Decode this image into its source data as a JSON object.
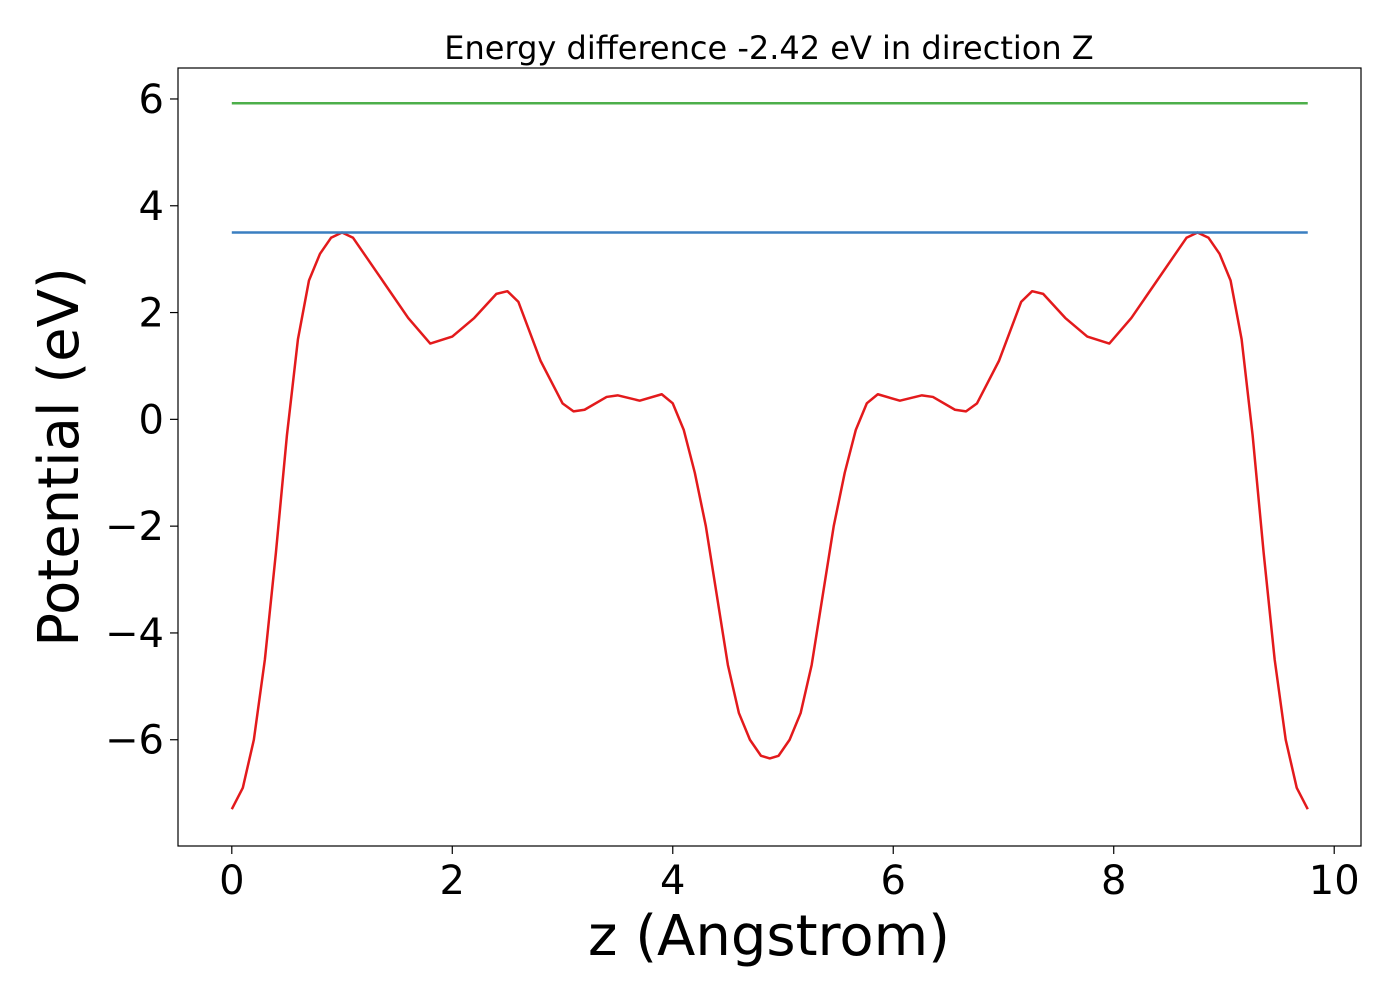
{
  "chart_data": {
    "type": "line",
    "title": "Energy difference -2.42 eV in direction Z",
    "xlabel": "z (Angstrom)",
    "ylabel": "Potential (eV)",
    "xlim": [
      -0.488,
      10.243
    ],
    "ylim": [
      -7.99,
      6.58
    ],
    "xticks": [
      0,
      2,
      4,
      6,
      8,
      10
    ],
    "yticks": [
      {
        "value": -6,
        "label": "−6"
      },
      {
        "value": -4,
        "label": "−4"
      },
      {
        "value": -2,
        "label": "−2"
      },
      0,
      2,
      4,
      6
    ],
    "series": [
      {
        "color": "#e31a1c",
        "x": [
          0,
          0.1,
          0.2,
          0.3,
          0.4,
          0.5,
          0.6,
          0.7,
          0.8,
          0.9,
          1.0,
          1.1,
          1.2,
          1.4,
          1.6,
          1.8,
          2.0,
          2.2,
          2.4,
          2.5,
          2.6,
          2.8,
          3.0,
          3.1,
          3.2,
          3.4,
          3.5,
          3.7,
          3.9,
          4.0,
          4.1,
          4.2,
          4.3,
          4.4,
          4.5,
          4.6,
          4.7,
          4.8,
          4.88,
          4.96,
          5.06,
          5.16,
          5.26,
          5.36,
          5.46,
          5.56,
          5.66,
          5.76,
          5.86,
          6.06,
          6.26,
          6.36,
          6.56,
          6.66,
          6.76,
          6.96,
          7.16,
          7.26,
          7.36,
          7.56,
          7.76,
          7.96,
          8.16,
          8.36,
          8.56,
          8.66,
          8.76,
          8.86,
          8.96,
          9.06,
          9.16,
          9.26,
          9.36,
          9.46,
          9.56,
          9.66,
          9.76
        ],
        "values": [
          -7.3,
          -6.9,
          -6.0,
          -4.5,
          -2.5,
          -0.3,
          1.5,
          2.6,
          3.1,
          3.4,
          3.5,
          3.4,
          3.1,
          2.5,
          1.9,
          1.42,
          1.55,
          1.9,
          2.35,
          2.4,
          2.2,
          1.1,
          0.3,
          0.15,
          0.18,
          0.42,
          0.45,
          0.35,
          0.47,
          0.3,
          -0.2,
          -1.0,
          -2.0,
          -3.3,
          -4.6,
          -5.5,
          -6.0,
          -6.3,
          -6.35,
          -6.3,
          -6.0,
          -5.5,
          -4.6,
          -3.3,
          -2.0,
          -1.0,
          -0.2,
          0.3,
          0.47,
          0.35,
          0.45,
          0.42,
          0.18,
          0.15,
          0.3,
          1.1,
          2.2,
          2.4,
          2.35,
          1.9,
          1.55,
          1.42,
          1.9,
          2.5,
          3.1,
          3.4,
          3.5,
          3.4,
          3.1,
          2.6,
          1.5,
          -0.3,
          -2.5,
          -4.5,
          -6.0,
          -6.9,
          -7.3
        ]
      },
      {
        "color": "#3a7fc1",
        "x": [
          0,
          9.76
        ],
        "values": [
          3.5,
          3.5
        ]
      },
      {
        "color": "#4daf4a",
        "x": [
          0,
          9.76
        ],
        "values": [
          5.92,
          5.92
        ]
      }
    ]
  }
}
